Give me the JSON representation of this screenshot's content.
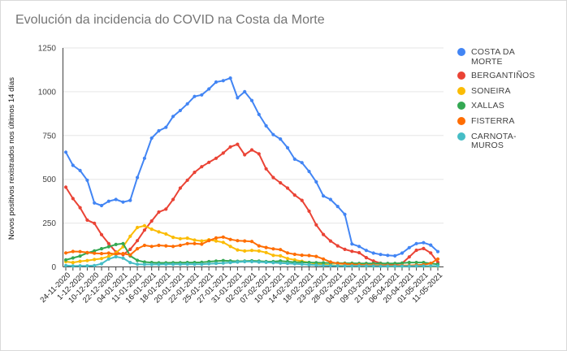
{
  "chart_data": {
    "type": "line",
    "title": "Evolución da incidencia do COVID na Costa da Morte",
    "xlabel": "",
    "ylabel": "Novos positivos rexistrados nos últimos 14 días",
    "ylim": [
      0,
      1250
    ],
    "yticks": [
      0,
      250,
      500,
      750,
      1000,
      1250
    ],
    "grid": true,
    "legend_position": "right",
    "num_points": 53,
    "label_every": 2,
    "x_labels": [
      "24-11-2020",
      "1-12-2020",
      "10-12-2020",
      "22-12-2020",
      "04-01-2021",
      "11-01-2021",
      "16-01-2021",
      "18-01-2021",
      "20-01-2021",
      "22-01-2021",
      "25-01-2021",
      "27-01-2021",
      "31-01-2021",
      "02-02-2021",
      "07-02-2021",
      "10-02-2021",
      "14-02-2021",
      "18-02-2021",
      "23-02-2021",
      "28-02-2021",
      "04-03-2021",
      "09-03-2021",
      "21-03-2021",
      "06-04-2021",
      "20-04-2021",
      "01-05-2021",
      "11-05-2021"
    ],
    "series": [
      {
        "name": "COSTA DA MORTE",
        "slug": "costa-da-morte",
        "color": "#4285F4",
        "legend_lines": [
          "COSTA DA",
          "MORTE"
        ],
        "values": [
          655,
          580,
          550,
          495,
          365,
          350,
          375,
          385,
          370,
          380,
          510,
          620,
          735,
          777,
          797,
          859,
          893,
          931,
          973,
          982,
          1016,
          1055,
          1063,
          1078,
          965,
          1000,
          950,
          870,
          805,
          755,
          730,
          680,
          615,
          595,
          545,
          485,
          405,
          385,
          345,
          300,
          131,
          117,
          94,
          79,
          71,
          66,
          63,
          79,
          110,
          133,
          138,
          125,
          87
        ]
      },
      {
        "name": "BERGANTIÑOS",
        "slug": "bergantinos",
        "color": "#EA4335",
        "legend_lines": [
          "BERGANTIÑOS"
        ],
        "values": [
          455,
          390,
          338,
          267,
          249,
          184,
          133,
          85,
          70,
          100,
          150,
          210,
          262,
          313,
          330,
          385,
          450,
          495,
          540,
          572,
          597,
          620,
          650,
          685,
          700,
          640,
          668,
          645,
          560,
          510,
          480,
          450,
          410,
          380,
          318,
          240,
          185,
          148,
          120,
          100,
          89,
          81,
          53,
          34,
          21,
          15,
          15,
          21,
          57,
          95,
          105,
          80,
          26
        ]
      },
      {
        "name": "SONEIRA",
        "slug": "soneira",
        "color": "#FBBC04",
        "legend_lines": [
          "SONEIRA"
        ],
        "values": [
          30,
          25,
          32,
          36,
          42,
          48,
          60,
          80,
          115,
          175,
          225,
          235,
          215,
          200,
          188,
          169,
          161,
          164,
          153,
          148,
          155,
          148,
          140,
          117,
          97,
          91,
          94,
          91,
          82,
          66,
          63,
          48,
          40,
          32,
          25,
          18,
          14,
          10,
          8,
          7,
          6,
          6,
          5,
          5,
          5,
          4,
          4,
          4,
          5,
          5,
          5,
          4,
          4
        ]
      },
      {
        "name": "XALLAS",
        "slug": "xallas",
        "color": "#34A853",
        "legend_lines": [
          "XALLAS"
        ],
        "values": [
          40,
          51,
          62,
          80,
          91,
          104,
          115,
          128,
          133,
          63,
          37,
          28,
          25,
          23,
          23,
          24,
          24,
          25,
          25,
          26,
          30,
          33,
          36,
          34,
          32,
          33,
          35,
          33,
          30,
          30,
          34,
          30,
          27,
          26,
          25,
          24,
          23,
          22,
          22,
          21,
          21,
          20,
          20,
          20,
          20,
          20,
          20,
          22,
          25,
          25,
          25,
          20,
          15
        ]
      },
      {
        "name": "FISTERRA",
        "slug": "fisterra",
        "color": "#FF6D01",
        "legend_lines": [
          "FISTERRA"
        ],
        "values": [
          80,
          88,
          87,
          82,
          78,
          76,
          79,
          72,
          76,
          68,
          104,
          123,
          117,
          123,
          120,
          117,
          123,
          133,
          133,
          130,
          150,
          165,
          170,
          157,
          150,
          148,
          145,
          120,
          111,
          103,
          99,
          80,
          72,
          67,
          65,
          60,
          45,
          28,
          20,
          17,
          14,
          12,
          10,
          10,
          9,
          9,
          8,
          8,
          8,
          10,
          12,
          20,
          45
        ]
      },
      {
        "name": "CARNOTA-MUROS",
        "slug": "carnota-muros",
        "color": "#46BDC6",
        "legend_lines": [
          "CARNOTA-",
          "MUROS"
        ],
        "values": [
          8,
          5,
          6,
          6,
          8,
          18,
          45,
          58,
          50,
          25,
          15,
          14,
          14,
          14,
          15,
          15,
          15,
          16,
          15,
          15,
          18,
          20,
          22,
          25,
          28,
          30,
          30,
          28,
          26,
          24,
          22,
          20,
          18,
          15,
          12,
          10,
          8,
          7,
          6,
          5,
          5,
          5,
          5,
          5,
          4,
          4,
          4,
          4,
          4,
          5,
          5,
          5,
          5
        ]
      }
    ]
  }
}
